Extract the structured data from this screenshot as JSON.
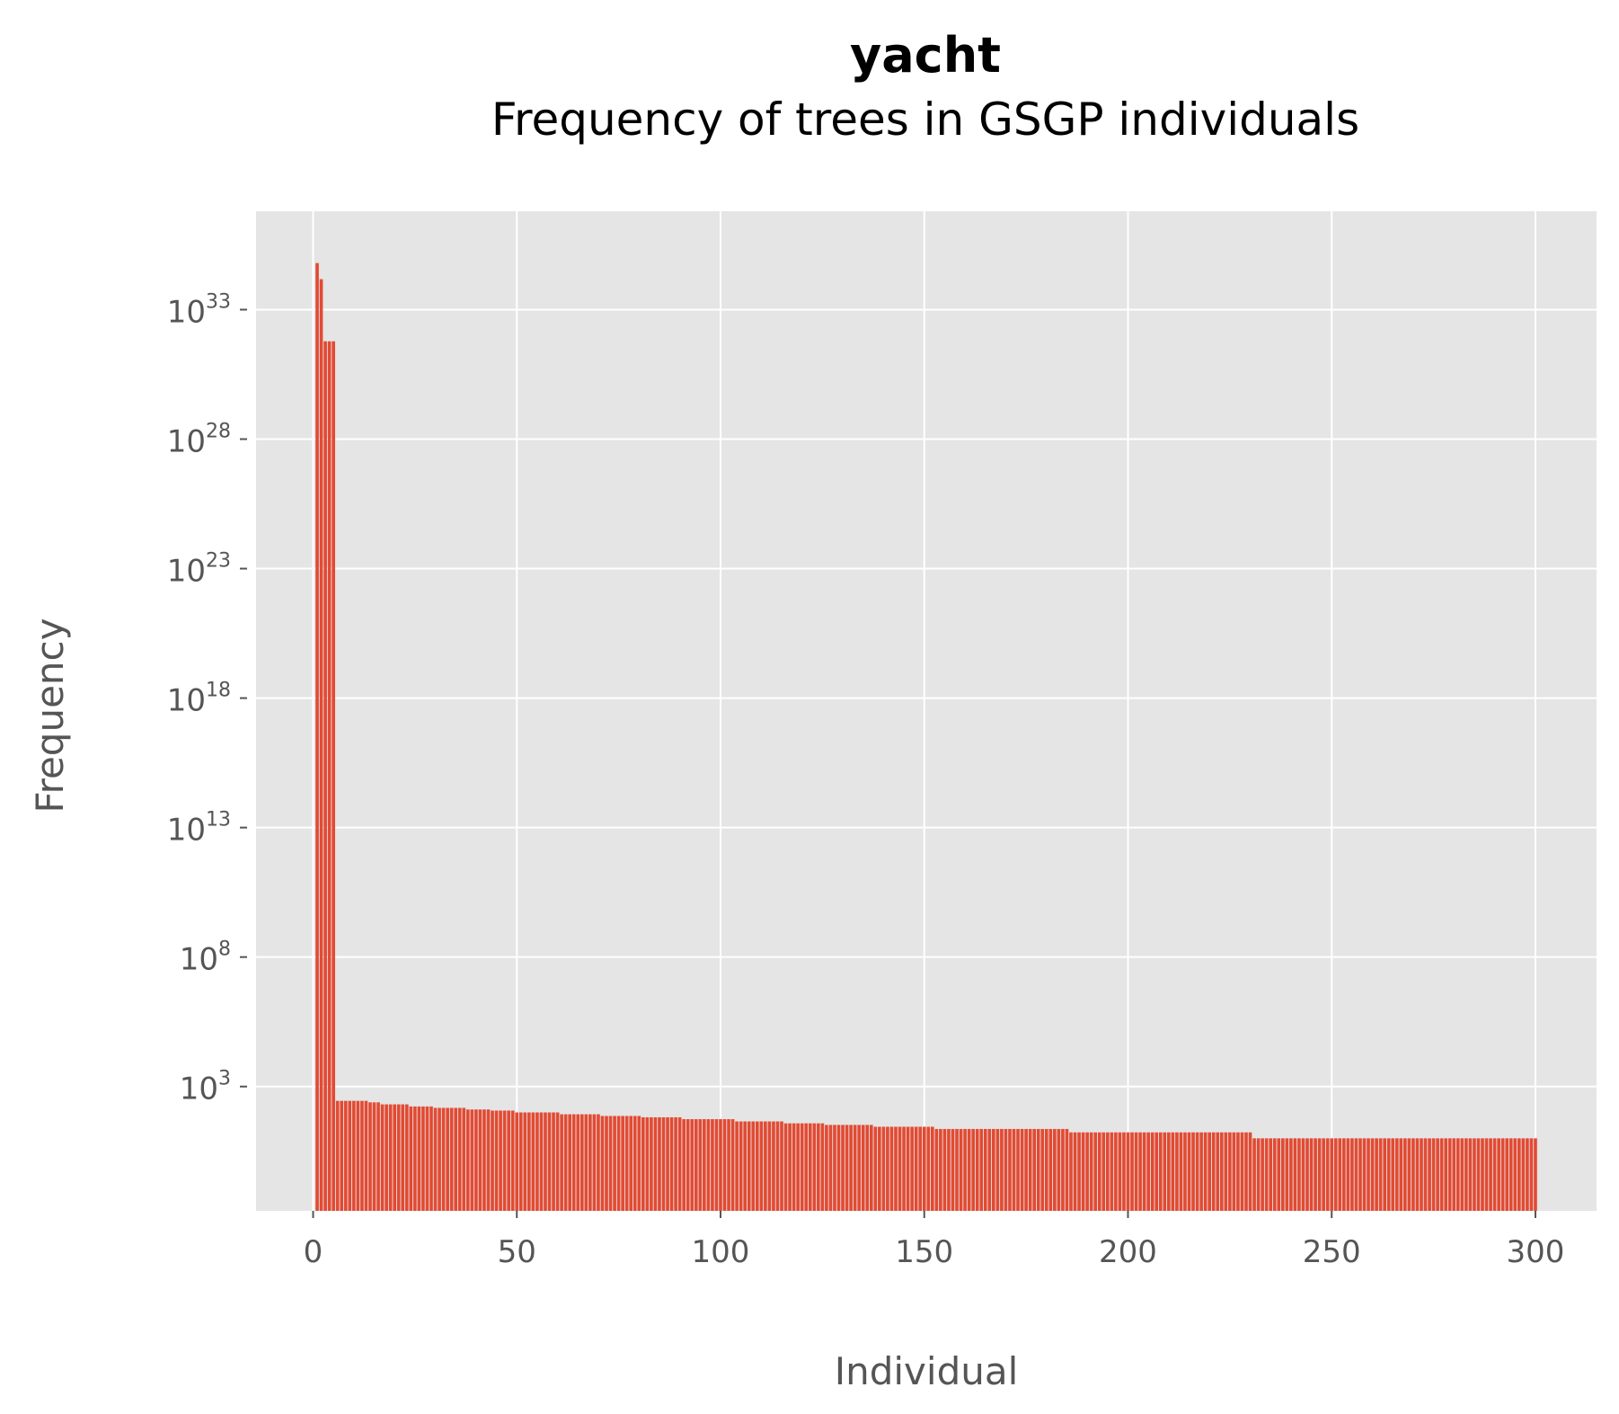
{
  "chart_data": {
    "type": "bar",
    "title": "yacht",
    "subtitle": "Frequency of trees in GSGP individuals",
    "xlabel": "Individual",
    "ylabel": "Frequency",
    "y_scale": "log",
    "xlim": [
      -14,
      315
    ],
    "ylim_log10": [
      -1.8,
      36.8
    ],
    "x_ticks": [
      0,
      50,
      100,
      150,
      200,
      250,
      300
    ],
    "y_ticks": [
      {
        "base": "10",
        "exp": "3",
        "log10": 3
      },
      {
        "base": "10",
        "exp": "8",
        "log10": 8
      },
      {
        "base": "10",
        "exp": "13",
        "log10": 13
      },
      {
        "base": "10",
        "exp": "18",
        "log10": 18
      },
      {
        "base": "10",
        "exp": "23",
        "log10": 23
      },
      {
        "base": "10",
        "exp": "28",
        "log10": 28
      },
      {
        "base": "10",
        "exp": "33",
        "log10": 33
      }
    ],
    "grid": true,
    "bar_color": "#E24A33",
    "background_color": "#E5E5E5",
    "n_individuals": 300,
    "leading_values": [
      6.3e+34,
      1.5e+34,
      6e+31,
      6e+31,
      6e+31
    ],
    "tail_steps": [
      {
        "from": 6,
        "to": 13,
        "value": 280
      },
      {
        "from": 14,
        "to": 16,
        "value": 245
      },
      {
        "from": 17,
        "to": 23,
        "value": 205
      },
      {
        "from": 24,
        "to": 29,
        "value": 170
      },
      {
        "from": 30,
        "to": 37,
        "value": 150
      },
      {
        "from": 38,
        "to": 43,
        "value": 130
      },
      {
        "from": 44,
        "to": 49,
        "value": 118
      },
      {
        "from": 50,
        "to": 60,
        "value": 100
      },
      {
        "from": 61,
        "to": 70,
        "value": 85
      },
      {
        "from": 71,
        "to": 80,
        "value": 73
      },
      {
        "from": 81,
        "to": 90,
        "value": 65
      },
      {
        "from": 91,
        "to": 103,
        "value": 55
      },
      {
        "from": 104,
        "to": 115,
        "value": 45
      },
      {
        "from": 116,
        "to": 125,
        "value": 38
      },
      {
        "from": 126,
        "to": 137,
        "value": 33
      },
      {
        "from": 138,
        "to": 152,
        "value": 28
      },
      {
        "from": 153,
        "to": 185,
        "value": 23
      },
      {
        "from": 186,
        "to": 230,
        "value": 17
      },
      {
        "from": 231,
        "to": 300,
        "value": 10
      }
    ]
  }
}
